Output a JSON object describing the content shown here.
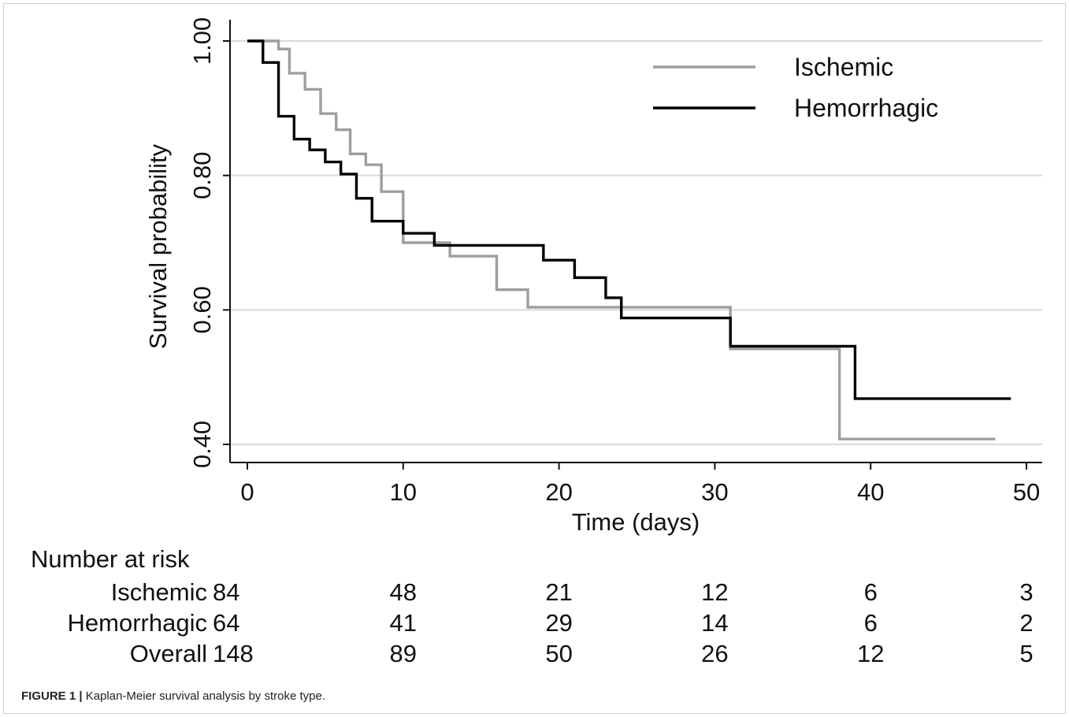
{
  "chart_data": {
    "type": "line",
    "subtype": "kaplan-meier step",
    "xlabel": "Time (days)",
    "ylabel": "Survival probability",
    "xlim": [
      0,
      50
    ],
    "ylim": [
      0.4,
      1.0
    ],
    "x_ticks": [
      0,
      10,
      20,
      30,
      40,
      50
    ],
    "y_ticks": [
      {
        "value": 0.4,
        "label": "0.40"
      },
      {
        "value": 0.6,
        "label": "0.60"
      },
      {
        "value": 0.8,
        "label": "0.80"
      },
      {
        "value": 1.0,
        "label": "1.00"
      }
    ],
    "grid": "horizontal",
    "legend_position": "top-right",
    "series": [
      {
        "name": "Ischemic",
        "color": "#9e9e9e",
        "steps": [
          [
            0,
            1.0
          ],
          [
            2,
            0.988
          ],
          [
            2.7,
            0.952
          ],
          [
            3,
            0.952
          ],
          [
            3.7,
            0.928
          ],
          [
            4,
            0.928
          ],
          [
            4.7,
            0.892
          ],
          [
            5,
            0.892
          ],
          [
            5.7,
            0.868
          ],
          [
            6,
            0.868
          ],
          [
            6.6,
            0.832
          ],
          [
            7,
            0.832
          ],
          [
            7.6,
            0.816
          ],
          [
            8,
            0.816
          ],
          [
            8.6,
            0.776
          ],
          [
            9,
            0.776
          ],
          [
            10,
            0.7
          ],
          [
            12,
            0.7
          ],
          [
            12.7,
            0.7
          ],
          [
            13,
            0.68
          ],
          [
            15,
            0.68
          ],
          [
            16,
            0.656
          ],
          [
            16,
            0.63
          ],
          [
            18,
            0.63
          ],
          [
            18,
            0.604
          ],
          [
            31,
            0.604
          ],
          [
            31,
            0.542
          ],
          [
            38,
            0.542
          ],
          [
            38,
            0.408
          ],
          [
            48,
            0.408
          ]
        ]
      },
      {
        "name": "Hemorrhagic",
        "color": "#000000",
        "steps": [
          [
            0,
            1.0
          ],
          [
            1,
            1.0
          ],
          [
            1,
            0.968
          ],
          [
            2,
            0.968
          ],
          [
            2,
            0.888
          ],
          [
            3,
            0.888
          ],
          [
            3,
            0.854
          ],
          [
            4,
            0.854
          ],
          [
            4,
            0.838
          ],
          [
            5,
            0.838
          ],
          [
            5,
            0.82
          ],
          [
            6,
            0.82
          ],
          [
            6,
            0.802
          ],
          [
            7,
            0.802
          ],
          [
            7,
            0.766
          ],
          [
            8,
            0.766
          ],
          [
            8,
            0.732
          ],
          [
            10,
            0.732
          ],
          [
            10,
            0.714
          ],
          [
            12,
            0.714
          ],
          [
            12,
            0.696
          ],
          [
            19,
            0.696
          ],
          [
            19,
            0.674
          ],
          [
            21,
            0.674
          ],
          [
            21,
            0.648
          ],
          [
            23,
            0.648
          ],
          [
            23,
            0.618
          ],
          [
            24,
            0.618
          ],
          [
            24,
            0.588
          ],
          [
            31,
            0.588
          ],
          [
            31,
            0.546
          ],
          [
            39,
            0.546
          ],
          [
            39,
            0.468
          ],
          [
            49,
            0.468
          ]
        ]
      }
    ],
    "risk_table": {
      "title": "Number at risk",
      "times": [
        0,
        10,
        20,
        30,
        40,
        50
      ],
      "rows": [
        {
          "label": "Ischemic",
          "values": [
            "84",
            "48",
            "21",
            "12",
            "6",
            "3"
          ]
        },
        {
          "label": "Hemorrhagic",
          "values": [
            "64",
            "41",
            "29",
            "14",
            "6",
            "2"
          ]
        },
        {
          "label": "Overall",
          "values": [
            "148",
            "89",
            "50",
            "26",
            "12",
            "5"
          ]
        }
      ]
    }
  },
  "caption": {
    "prefix": "FIGURE 1 |",
    "text": " Kaplan-Meier survival analysis by stroke type."
  }
}
